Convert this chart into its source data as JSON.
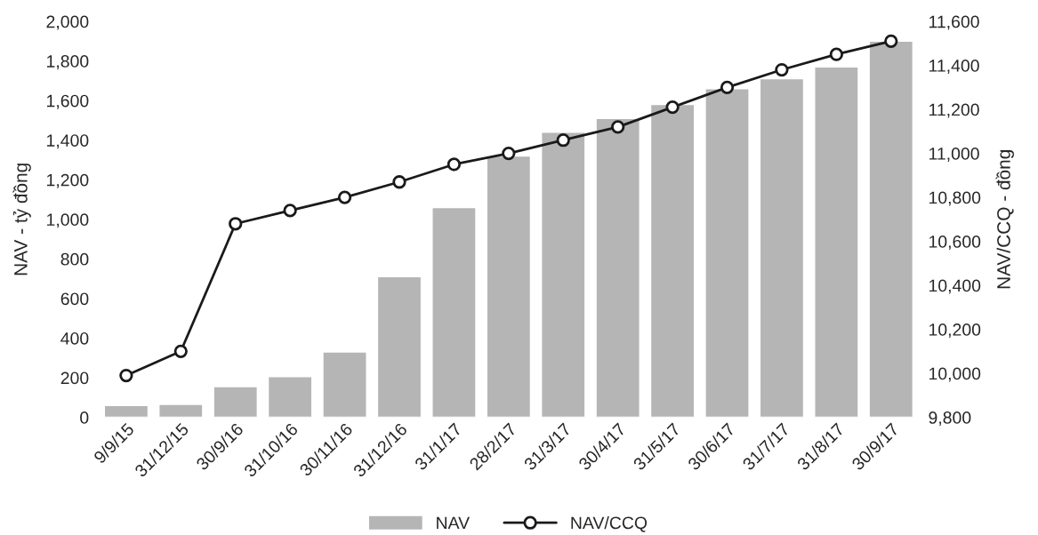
{
  "chart_data": {
    "type": "bar",
    "categories": [
      "9/9/15",
      "31/12/15",
      "30/9/16",
      "31/10/16",
      "30/11/16",
      "31/12/16",
      "31/1/17",
      "28/2/17",
      "31/3/17",
      "30/4/17",
      "31/5/17",
      "30/6/17",
      "31/7/17",
      "31/8/17",
      "30/9/17"
    ],
    "series": [
      {
        "name": "NAV",
        "color": "#b5b5b5",
        "values": [
          60,
          65,
          155,
          205,
          330,
          710,
          1060,
          1320,
          1440,
          1510,
          1580,
          1660,
          1710,
          1770,
          1900
        ]
      },
      {
        "name": "NAV/CCQ",
        "type": "line",
        "axis": "y2",
        "color": "#1a1a1a",
        "marker": "circle",
        "values": [
          9990,
          10100,
          10680,
          10740,
          10800,
          10870,
          10950,
          11000,
          11060,
          11120,
          11210,
          11300,
          11380,
          11450,
          11510
        ]
      }
    ],
    "ylabel": "NAV - tỷ đồng",
    "y2label": "NAV/CCQ - đồng",
    "ylim": [
      0,
      2000
    ],
    "yticks": [
      {
        "value": 0,
        "label": "0"
      },
      {
        "value": 200,
        "label": "200"
      },
      {
        "value": 400,
        "label": "400"
      },
      {
        "value": 600,
        "label": "600"
      },
      {
        "value": 800,
        "label": "800"
      },
      {
        "value": 1000,
        "label": "1,000"
      },
      {
        "value": 1200,
        "label": "1,200"
      },
      {
        "value": 1400,
        "label": "1,400"
      },
      {
        "value": 1600,
        "label": "1,600"
      },
      {
        "value": 1800,
        "label": "1,800"
      },
      {
        "value": 2000,
        "label": "2,000"
      }
    ],
    "y2lim": [
      9800,
      11600
    ],
    "y2ticks": [
      {
        "value": 9800,
        "label": "9,800"
      },
      {
        "value": 10000,
        "label": "10,000"
      },
      {
        "value": 10200,
        "label": "10,200"
      },
      {
        "value": 10400,
        "label": "10,400"
      },
      {
        "value": 10600,
        "label": "10,600"
      },
      {
        "value": 10800,
        "label": "10,800"
      },
      {
        "value": 11000,
        "label": "11,000"
      },
      {
        "value": 11200,
        "label": "11,200"
      },
      {
        "value": 11400,
        "label": "11,400"
      },
      {
        "value": 11600,
        "label": "11,600"
      }
    ],
    "grid": false,
    "legend": "bottom"
  }
}
